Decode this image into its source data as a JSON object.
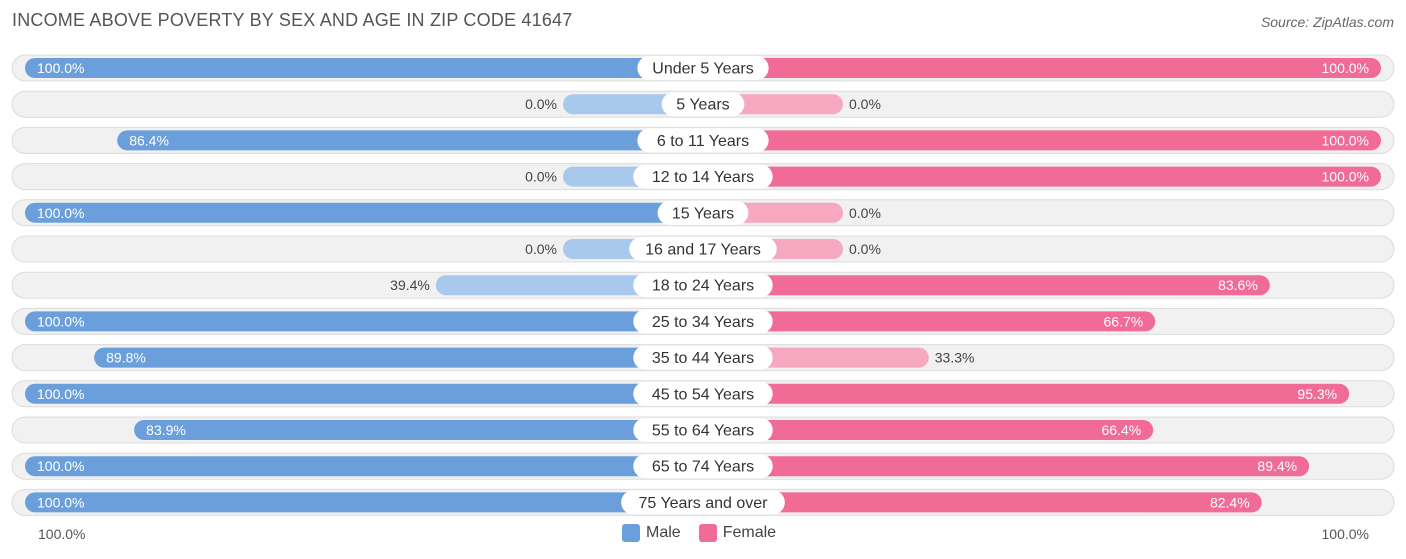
{
  "title": "INCOME ABOVE POVERTY BY SEX AND AGE IN ZIP CODE 41647",
  "source": "Source: ZipAtlas.com",
  "axis": {
    "left_label": "100.0%",
    "right_label": "100.0%"
  },
  "legend": {
    "male_label": "Male",
    "female_label": "Female"
  },
  "colors": {
    "male": "#6a9fdc",
    "male_light": "#a9c9ec",
    "female": "#f06b96",
    "female_light": "#f5a8c0",
    "row_bg": "#f1f1f1",
    "row_border": "#dcdcdc"
  },
  "chart_data": {
    "type": "bar",
    "orientation": "diverging-horizontal",
    "categories": [
      "Under 5 Years",
      "5 Years",
      "6 to 11 Years",
      "12 to 14 Years",
      "15 Years",
      "16 and 17 Years",
      "18 to 24 Years",
      "25 to 34 Years",
      "35 to 44 Years",
      "45 to 54 Years",
      "55 to 64 Years",
      "65 to 74 Years",
      "75 Years and over"
    ],
    "series": [
      {
        "name": "Male",
        "values": [
          100.0,
          0.0,
          86.4,
          0.0,
          100.0,
          0.0,
          39.4,
          100.0,
          89.8,
          100.0,
          83.9,
          100.0,
          100.0
        ]
      },
      {
        "name": "Female",
        "values": [
          100.0,
          0.0,
          100.0,
          100.0,
          0.0,
          0.0,
          83.6,
          66.7,
          33.3,
          95.3,
          66.4,
          89.4,
          82.4
        ]
      }
    ],
    "value_labels": {
      "male": [
        "100.0%",
        "0.0%",
        "86.4%",
        "0.0%",
        "100.0%",
        "0.0%",
        "39.4%",
        "100.0%",
        "89.8%",
        "100.0%",
        "83.9%",
        "100.0%",
        "100.0%"
      ],
      "female": [
        "100.0%",
        "0.0%",
        "100.0%",
        "100.0%",
        "0.0%",
        "0.0%",
        "83.6%",
        "66.7%",
        "33.3%",
        "95.3%",
        "66.4%",
        "89.4%",
        "82.4%"
      ]
    },
    "xlim": [
      -100,
      100
    ],
    "legend_position": "bottom-center"
  }
}
